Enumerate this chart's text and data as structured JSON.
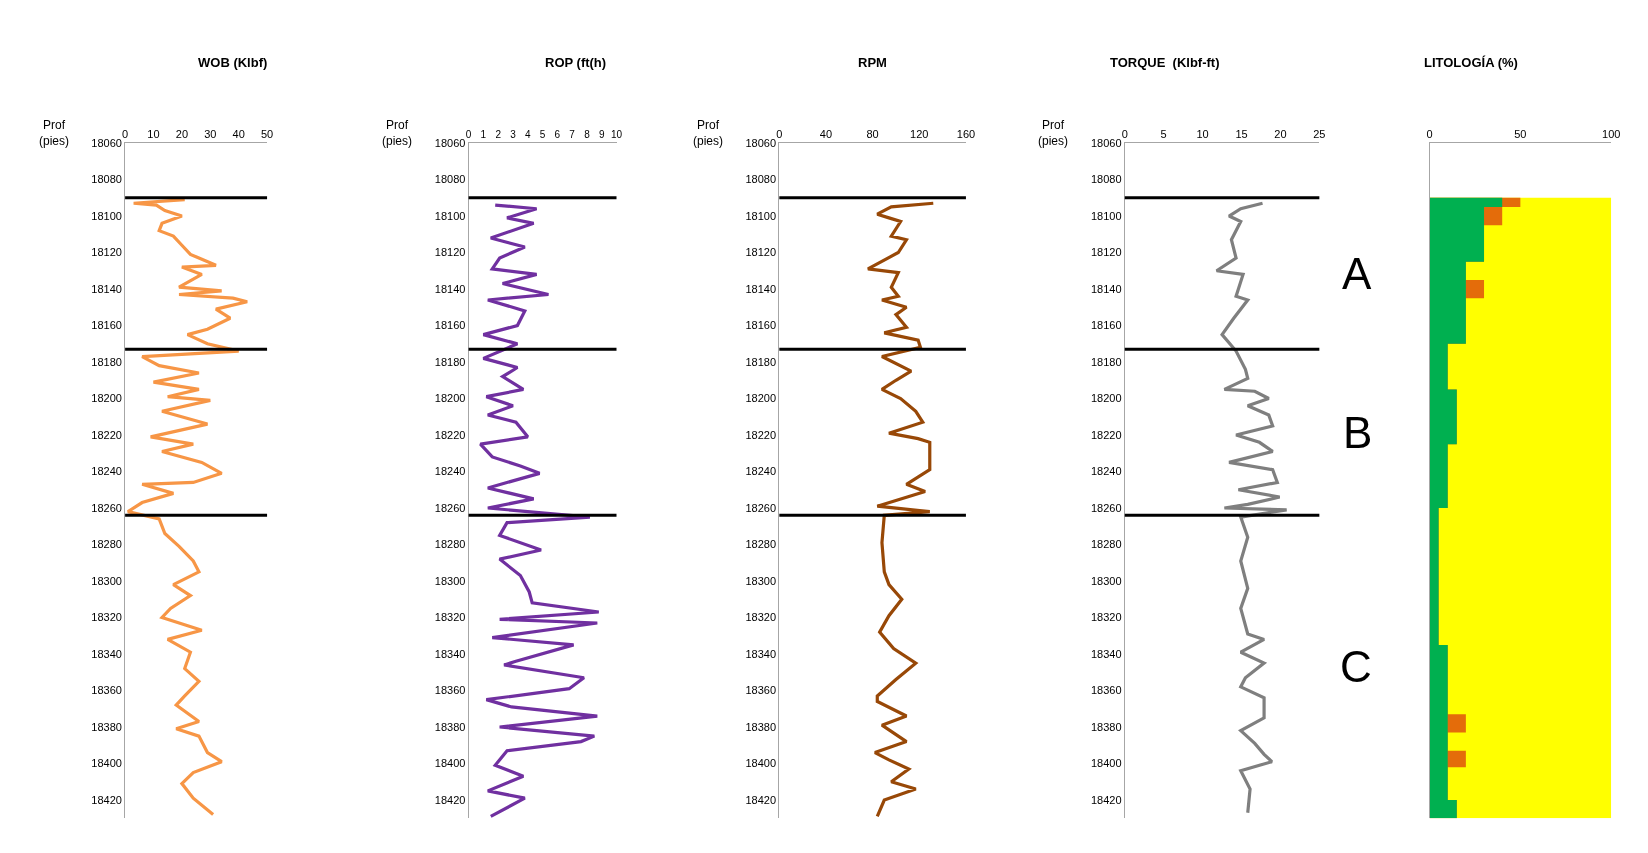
{
  "chart_data": [
    {
      "type": "line",
      "title": "WOB (Klbf)",
      "ylabel": "Prof\n(pies)",
      "orientation": "horizontal",
      "xlim": [
        0,
        50
      ],
      "xticks": [
        0,
        10,
        20,
        30,
        40,
        50
      ],
      "ylim": [
        18430,
        18060
      ],
      "yticks": [
        18060,
        18080,
        18100,
        18120,
        18140,
        18160,
        18180,
        18200,
        18220,
        18240,
        18260,
        18280,
        18300,
        18320,
        18340,
        18360,
        18380,
        18400,
        18420
      ],
      "ref_lines": [
        {
          "axis": "y",
          "value": 18090,
          "color": "#000000"
        },
        {
          "axis": "y",
          "value": 18173,
          "color": "#000000"
        },
        {
          "axis": "y",
          "value": 18264,
          "color": "#000000"
        }
      ],
      "series": [
        {
          "color": "#f79646",
          "x": [
            18091,
            18093,
            18094,
            18097,
            18100,
            18104,
            18108,
            18111,
            18116,
            18121,
            18127,
            18128,
            18132,
            18139,
            18141,
            18143,
            18145,
            18147,
            18151,
            18156,
            18162,
            18165,
            18170,
            18174,
            18177,
            18182,
            18186,
            18191,
            18195,
            18199,
            18201,
            18207,
            18214,
            18221,
            18225,
            18229,
            18235,
            18241,
            18246,
            18247,
            18252,
            18257,
            18262,
            18266,
            18274,
            18281,
            18289,
            18295,
            18302,
            18308,
            18315,
            18320,
            18327,
            18332,
            18339,
            18348,
            18355,
            18363,
            18368,
            18377,
            18381,
            18385,
            18394,
            18399,
            18405,
            18411,
            18419,
            18428
          ],
          "values": [
            21,
            3,
            11,
            14,
            20,
            13,
            12,
            17,
            20,
            23,
            32,
            20,
            27,
            19,
            34,
            19,
            38,
            43,
            32,
            37,
            29,
            22,
            29,
            40,
            6,
            12,
            26,
            10,
            26,
            15,
            30,
            13,
            29,
            9,
            24,
            13,
            27,
            34,
            24,
            6,
            17,
            6,
            1,
            12,
            14,
            19,
            24,
            26,
            17,
            23,
            16,
            13,
            27,
            15,
            23,
            21,
            26,
            21,
            18,
            26,
            18,
            26,
            29,
            34,
            24,
            20,
            24,
            31
          ]
        }
      ]
    },
    {
      "type": "line",
      "title": "ROP (ft(h)",
      "ylabel": "Prof\n(pies)",
      "orientation": "horizontal",
      "xlim": [
        0,
        10
      ],
      "xticks": [
        0,
        1,
        2,
        3,
        4,
        5,
        6,
        7,
        8,
        9,
        10
      ],
      "ylim": [
        18430,
        18060
      ],
      "yticks": [
        18060,
        18080,
        18100,
        18120,
        18140,
        18160,
        18180,
        18200,
        18220,
        18240,
        18260,
        18280,
        18300,
        18320,
        18340,
        18360,
        18380,
        18400,
        18420
      ],
      "ref_lines": [
        {
          "axis": "y",
          "value": 18090,
          "color": "#000000"
        },
        {
          "axis": "y",
          "value": 18173,
          "color": "#000000"
        },
        {
          "axis": "y",
          "value": 18264,
          "color": "#000000"
        }
      ],
      "series": [
        {
          "color": "#7030a0",
          "x": [
            18094,
            18096,
            18101,
            18104,
            18112,
            18117,
            18123,
            18129,
            18132,
            18137,
            18143,
            18146,
            18152,
            18160,
            18165,
            18170,
            18178,
            18183,
            18188,
            18195,
            18199,
            18204,
            18209,
            18213,
            18221,
            18225,
            18232,
            18237,
            18241,
            18249,
            18255,
            18260,
            18265,
            18268,
            18275,
            18283,
            18288,
            18297,
            18306,
            18312,
            18317,
            18321,
            18323,
            18331,
            18335,
            18344,
            18346,
            18353,
            18359,
            18365,
            18369,
            18374,
            18380,
            18385,
            18388,
            18393,
            18401,
            18407,
            18415,
            18419,
            18429
          ],
          "values": [
            1.8,
            4.6,
            2.6,
            4.4,
            1.5,
            3.8,
            2.1,
            1.6,
            4.6,
            2.3,
            5.4,
            1.3,
            3.8,
            3.3,
            1.0,
            3.3,
            1.0,
            3.3,
            2.3,
            3.7,
            1.2,
            3.0,
            1.3,
            3.2,
            4.0,
            0.8,
            1.6,
            3.5,
            4.8,
            1.3,
            4.4,
            1.3,
            8.2,
            2.6,
            2.1,
            4.9,
            2.1,
            3.5,
            4.1,
            4.3,
            8.8,
            2.1,
            8.7,
            1.6,
            7.1,
            3.2,
            2.4,
            7.8,
            6.8,
            1.2,
            2.9,
            8.7,
            2.1,
            8.5,
            7.6,
            2.6,
            1.8,
            3.7,
            1.3,
            3.8,
            1.5
          ]
        }
      ]
    },
    {
      "type": "line",
      "title": "RPM",
      "ylabel": "Prof\n(pies)",
      "orientation": "horizontal",
      "xlim": [
        0,
        160
      ],
      "xticks": [
        0,
        40,
        80,
        120,
        160
      ],
      "ylim": [
        18430,
        18060
      ],
      "yticks": [
        18060,
        18080,
        18100,
        18120,
        18140,
        18160,
        18180,
        18200,
        18220,
        18240,
        18260,
        18280,
        18300,
        18320,
        18340,
        18360,
        18380,
        18400,
        18420
      ],
      "ref_lines": [
        {
          "axis": "y",
          "value": 18090,
          "color": "#000000"
        },
        {
          "axis": "y",
          "value": 18173,
          "color": "#000000"
        },
        {
          "axis": "y",
          "value": 18264,
          "color": "#000000"
        }
      ],
      "series": [
        {
          "color": "#984807",
          "x": [
            18093,
            18095,
            18099,
            18101,
            18103,
            18111,
            18113,
            18120,
            18129,
            18131,
            18139,
            18144,
            18146,
            18150,
            18154,
            18161,
            18164,
            18168,
            18172,
            18177,
            18185,
            18190,
            18195,
            18200,
            18207,
            18213,
            18219,
            18222,
            18224,
            18239,
            18247,
            18251,
            18259,
            18262,
            18264,
            18279,
            18295,
            18302,
            18310,
            18319,
            18328,
            18337,
            18345,
            18354,
            18363,
            18366,
            18374,
            18379,
            18388,
            18394,
            18398,
            18403,
            18410,
            18414,
            18420,
            18429
          ],
          "values": [
            132,
            96,
            84,
            94,
            104,
            96,
            109,
            102,
            76,
            102,
            96,
            102,
            88,
            109,
            100,
            109,
            90,
            119,
            121,
            88,
            113,
            100,
            88,
            104,
            117,
            123,
            94,
            119,
            129,
            129,
            109,
            125,
            84,
            129,
            90,
            88,
            90,
            94,
            105,
            94,
            86,
            98,
            117,
            100,
            84,
            84,
            109,
            88,
            109,
            82,
            94,
            111,
            96,
            117,
            90,
            84
          ]
        }
      ]
    },
    {
      "type": "line",
      "title": "TORQUE  (Klbf-ft)",
      "ylabel": "Prof\n(pies)",
      "orientation": "horizontal",
      "xlim": [
        0,
        25
      ],
      "xticks": [
        0,
        5,
        10,
        15,
        20,
        25
      ],
      "ylim": [
        18430,
        18060
      ],
      "yticks": [
        18060,
        18080,
        18100,
        18120,
        18140,
        18160,
        18180,
        18200,
        18220,
        18240,
        18260,
        18280,
        18300,
        18320,
        18340,
        18360,
        18380,
        18400,
        18420
      ],
      "ref_lines": [
        {
          "axis": "y",
          "value": 18090,
          "color": "#000000"
        },
        {
          "axis": "y",
          "value": 18173,
          "color": "#000000"
        },
        {
          "axis": "y",
          "value": 18264,
          "color": "#000000"
        }
      ],
      "annotations": [
        "A",
        "B",
        "C"
      ],
      "series": [
        {
          "color": "#7f7f7f",
          "x": [
            18093,
            18096,
            18100,
            18103,
            18113,
            18123,
            18130,
            18132,
            18144,
            18146,
            18156,
            18165,
            18174,
            18184,
            18189,
            18195,
            18196,
            18200,
            18204,
            18209,
            18215,
            18220,
            18224,
            18229,
            18235,
            18239,
            18246,
            18250,
            18254,
            18258,
            18260,
            18261,
            18265,
            18276,
            18289,
            18304,
            18315,
            18329,
            18332,
            18339,
            18345,
            18353,
            18358,
            18364,
            18375,
            18382,
            18389,
            18395,
            18399,
            18404,
            18414,
            18427
          ],
          "values": [
            17.7,
            14.9,
            13.4,
            14.9,
            13.7,
            14.3,
            11.8,
            15.2,
            14.3,
            15.8,
            14.0,
            12.5,
            14.3,
            15.5,
            15.8,
            12.8,
            16.7,
            18.5,
            15.8,
            18.5,
            19.0,
            14.3,
            17.3,
            19.0,
            13.4,
            19.0,
            19.6,
            14.6,
            19.9,
            15.8,
            12.8,
            20.8,
            14.9,
            15.8,
            14.9,
            15.8,
            14.9,
            15.8,
            17.9,
            14.9,
            17.9,
            15.5,
            14.9,
            17.9,
            17.9,
            14.9,
            16.7,
            17.9,
            18.9,
            14.9,
            16.1,
            15.8
          ]
        }
      ]
    },
    {
      "type": "area",
      "title": "LITOLOGÍA (%)",
      "orientation": "horizontal",
      "tick_labels": "x",
      "xlim": [
        0,
        100
      ],
      "xticks": [
        0,
        50,
        100
      ],
      "ylim": [
        18430,
        18060
      ],
      "x": [
        18090,
        18095,
        18095,
        18105,
        18105,
        18125,
        18125,
        18135,
        18135,
        18145,
        18145,
        18170,
        18170,
        18195,
        18195,
        18225,
        18225,
        18260,
        18260,
        18335,
        18335,
        18373,
        18373,
        18383,
        18383,
        18393,
        18393,
        18402,
        18402,
        18420,
        18420,
        18430
      ],
      "series": [
        {
          "color": "#ffff00",
          "values": [
            100,
            100,
            100,
            100,
            100,
            100,
            100,
            100,
            100,
            100,
            100,
            100,
            100,
            100,
            100,
            100,
            100,
            100,
            100,
            100,
            100,
            100,
            100,
            100,
            100,
            100,
            100,
            100,
            100,
            100,
            100,
            100
          ]
        },
        {
          "color": "#e46c0a",
          "values": [
            50,
            50,
            40,
            40,
            30,
            30,
            20,
            20,
            30,
            30,
            20,
            20,
            10,
            10,
            15,
            15,
            10,
            10,
            5,
            5,
            10,
            10,
            20,
            20,
            10,
            10,
            20,
            20,
            10,
            10,
            15,
            15
          ]
        },
        {
          "color": "#00b050",
          "values": [
            40,
            40,
            30,
            30,
            30,
            30,
            20,
            20,
            20,
            20,
            20,
            20,
            10,
            10,
            15,
            15,
            10,
            10,
            5,
            5,
            10,
            10,
            10,
            10,
            10,
            10,
            10,
            10,
            10,
            10,
            15,
            15
          ]
        }
      ]
    }
  ]
}
